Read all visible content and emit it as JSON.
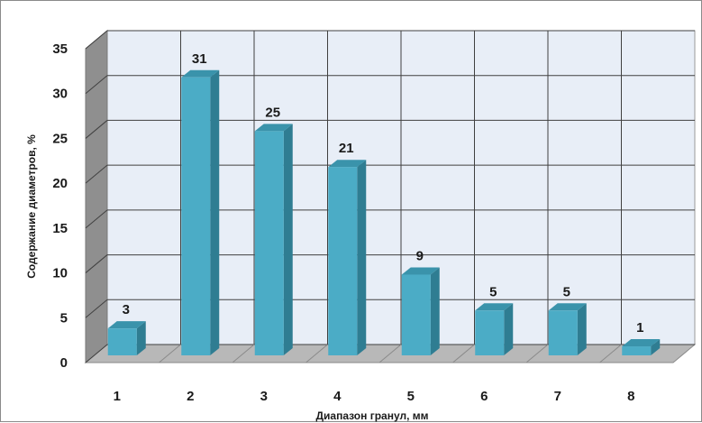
{
  "chart_data": {
    "type": "bar",
    "style": "3d-column",
    "categories": [
      "1",
      "2",
      "3",
      "4",
      "5",
      "6",
      "7",
      "8"
    ],
    "values": [
      3,
      31,
      25,
      21,
      9,
      5,
      5,
      1
    ],
    "data_labels": [
      "3",
      "31",
      "25",
      "21",
      "9",
      "5",
      "5",
      "1"
    ],
    "xlabel": "Диапазон гранул, мм",
    "ylabel": "Содержание диаметров, %",
    "ylim": [
      0,
      35
    ],
    "yticks": [
      "0",
      "5",
      "10",
      "15",
      "20",
      "25",
      "30",
      "35"
    ],
    "grid": true,
    "legend": "none",
    "colors": {
      "bar_front": "#4bacc6",
      "bar_side": "#2f7d92",
      "bar_top": "#3a93ab",
      "back_wall": "#e8eef7",
      "side_wall": "#8f8f8f",
      "floor": "#b8b8b8",
      "grid": "#404040"
    }
  }
}
